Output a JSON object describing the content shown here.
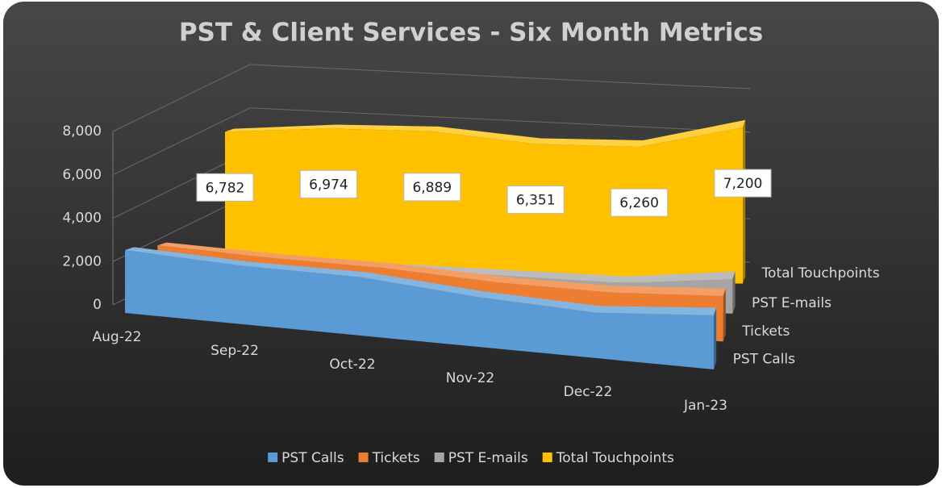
{
  "chart_data": {
    "type": "area3d",
    "title": "PST & Client Services - Six Month Metrics",
    "categories": [
      "Aug-22",
      "Sep-22",
      "Oct-22",
      "Nov-22",
      "Dec-22",
      "Jan-23"
    ],
    "series": [
      {
        "name": "PST Calls",
        "color": "#5b9bd5",
        "values": [
          2900,
          2700,
          2700,
          2300,
          2100,
          2500
        ]
      },
      {
        "name": "Tickets",
        "color": "#ed7d31",
        "values": [
          2600,
          2400,
          2300,
          2000,
          1900,
          2100
        ]
      },
      {
        "name": "PST E-mails",
        "color": "#a5a5a5",
        "values": [
          1300,
          1400,
          1400,
          1300,
          1200,
          1600
        ]
      },
      {
        "name": "Total Touchpoints",
        "color": "#ffc000",
        "values": [
          6782,
          6974,
          6889,
          6351,
          6260,
          7200
        ],
        "value_labels": [
          "6,782",
          "6,974",
          "6,889",
          "6,351",
          "6,260",
          "7,200"
        ]
      }
    ],
    "ylim": [
      0,
      8000
    ],
    "yticks": [
      0,
      {
        "value": 2000,
        "label": "2,000"
      },
      {
        "value": 4000,
        "label": "4,000"
      },
      {
        "value": 6000,
        "label": "6,000"
      },
      {
        "value": 8000,
        "label": "8,000"
      }
    ],
    "grid": true,
    "legend": "bottom"
  }
}
